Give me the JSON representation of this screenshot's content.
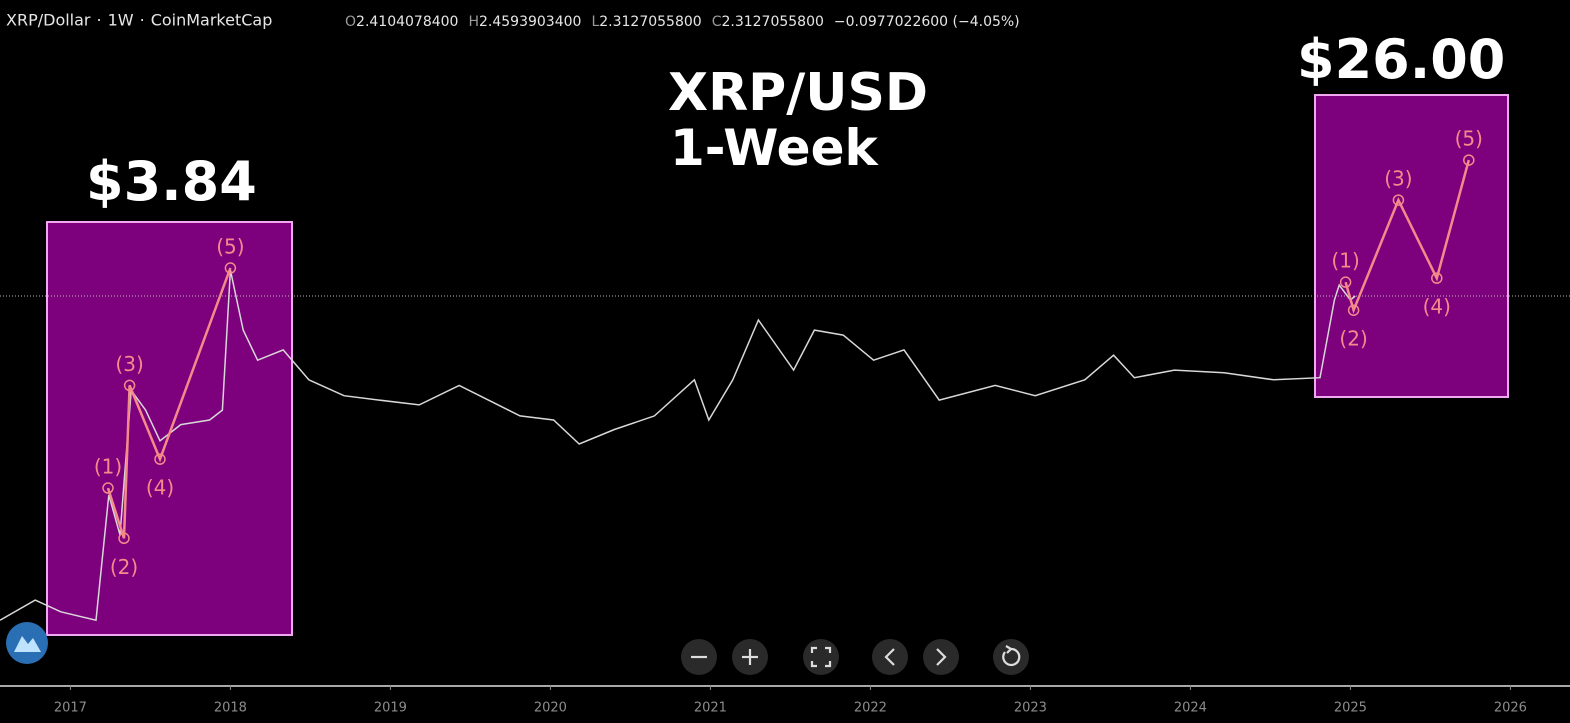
{
  "header": {
    "symbol": "XRP/Dollar",
    "interval": "1W",
    "source": "CoinMarketCap",
    "open_label": "O",
    "open": "2.4104078400",
    "high_label": "H",
    "high": "2.4593903400",
    "low_label": "L",
    "low": "2.3127055800",
    "close_label": "C",
    "close": "2.3127055800",
    "change": "−0.0977022600 (−4.05%)"
  },
  "chart_data": {
    "type": "line",
    "title": "XRP/USD",
    "subtitle": "1-Week",
    "log_scale": true,
    "xlim": [
      2016.56,
      2026.36
    ],
    "ylim": [
      0.00238,
      443
    ],
    "xticks": [
      2017,
      2018,
      2019,
      2020,
      2021,
      2022,
      2023,
      2024,
      2025,
      2026
    ],
    "series": [
      {
        "color": "#d8d8d8",
        "x": [
          2016.56,
          2016.78,
          2016.94,
          2017.16,
          2017.24,
          2017.31,
          2017.38,
          2017.47,
          2017.56,
          2017.69,
          2017.87,
          2017.95,
          2018.0,
          2018.08,
          2018.17,
          2018.33,
          2018.49,
          2018.71,
          2018.93,
          2019.18,
          2019.43,
          2019.81,
          2020.02,
          2020.18,
          2020.4,
          2020.65,
          2020.9,
          2020.99,
          2021.14,
          2021.3,
          2021.52,
          2021.65,
          2021.83,
          2022.02,
          2022.21,
          2022.43,
          2022.78,
          2023.03,
          2023.34,
          2023.52,
          2023.65,
          2023.9,
          2024.21,
          2024.52,
          2024.81,
          2024.9,
          2024.93,
          2025.0,
          2025.03
        ],
        "values": [
          0.0075,
          0.0107,
          0.0087,
          0.0075,
          0.069,
          0.034,
          0.44,
          0.31,
          0.18,
          0.24,
          0.26,
          0.31,
          3.7,
          1.28,
          0.75,
          0.9,
          0.53,
          0.4,
          0.37,
          0.34,
          0.48,
          0.28,
          0.26,
          0.17,
          0.22,
          0.28,
          0.53,
          0.26,
          0.53,
          1.53,
          0.63,
          1.28,
          1.17,
          0.75,
          0.9,
          0.37,
          0.48,
          0.4,
          0.53,
          0.82,
          0.55,
          0.63,
          0.6,
          0.53,
          0.55,
          2.18,
          2.84,
          2.18,
          2.34
        ]
      },
      {
        "color": "#f58a8a",
        "x": [
          2017.235,
          2017.335,
          2017.37,
          2017.56,
          2018.0
        ],
        "values": [
          0.078,
          0.032,
          0.48,
          0.13,
          3.84
        ],
        "labels": [
          "(1)",
          "(2)",
          "(3)",
          "(4)",
          "(5)"
        ]
      },
      {
        "color": "#f58a8a",
        "x": [
          2024.97,
          2025.02,
          2025.3,
          2025.54,
          2025.74
        ],
        "values": [
          2.99,
          1.82,
          12.8,
          3.21,
          26.0
        ],
        "labels": [
          "(1)",
          "(2)",
          "(3)",
          "(4)",
          "(5)"
        ]
      }
    ],
    "annotations": [
      "$3.84",
      "$26.00"
    ]
  }
}
